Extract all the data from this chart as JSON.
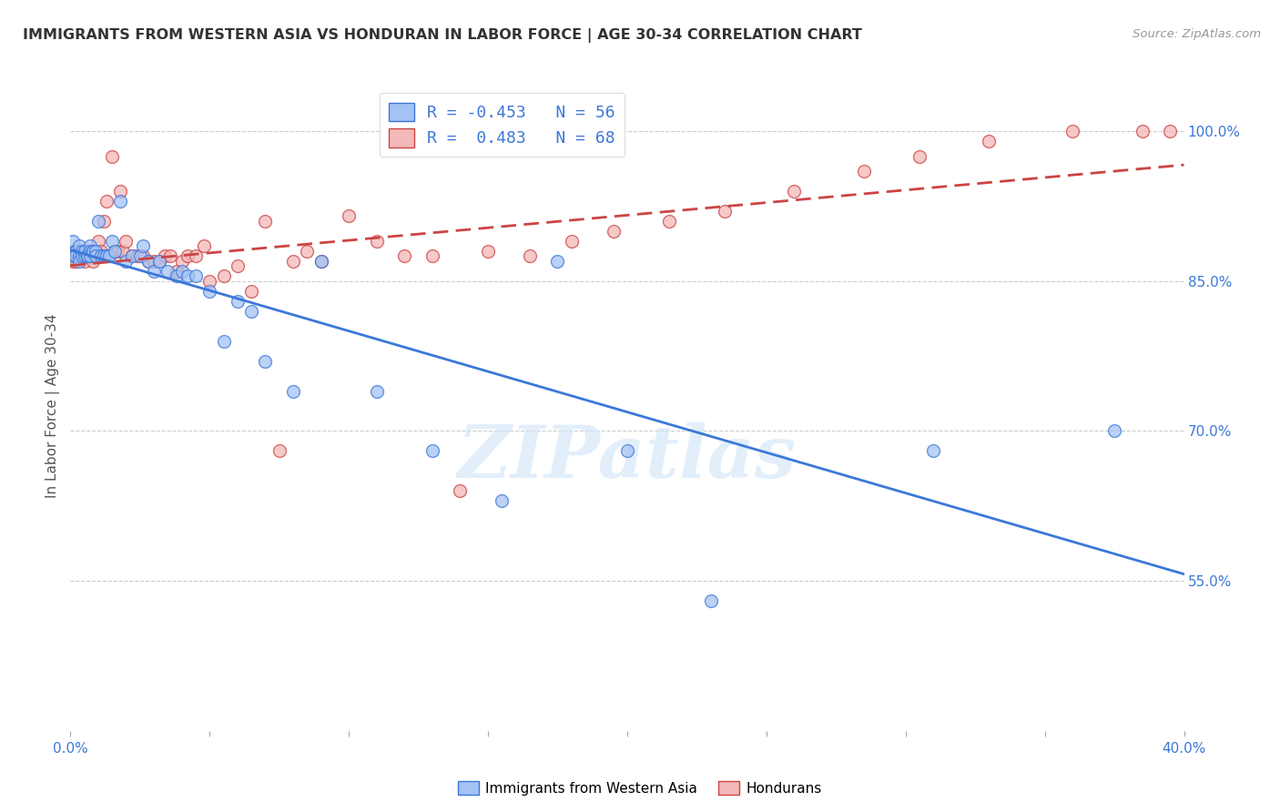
{
  "title": "IMMIGRANTS FROM WESTERN ASIA VS HONDURAN IN LABOR FORCE | AGE 30-34 CORRELATION CHART",
  "source": "Source: ZipAtlas.com",
  "ylabel": "In Labor Force | Age 30-34",
  "xlim": [
    0.0,
    0.4
  ],
  "ylim": [
    0.4,
    1.05
  ],
  "ytick_positions": [
    0.4,
    0.55,
    0.7,
    0.85,
    1.0
  ],
  "ytick_labels": [
    "",
    "55.0%",
    "70.0%",
    "85.0%",
    "100.0%"
  ],
  "blue_color": "#a4c2f4",
  "pink_color": "#f4b8b8",
  "blue_line_color": "#3c78d8",
  "pink_line_color": "#cc4444",
  "blue_R": -0.453,
  "blue_N": 56,
  "pink_R": 0.483,
  "pink_N": 68,
  "watermark": "ZIPatlas",
  "legend_label_blue": "Immigrants from Western Asia",
  "legend_label_pink": "Hondurans",
  "blue_points_x": [
    0.001,
    0.001,
    0.002,
    0.002,
    0.002,
    0.003,
    0.003,
    0.003,
    0.004,
    0.004,
    0.005,
    0.005,
    0.006,
    0.006,
    0.007,
    0.007,
    0.007,
    0.008,
    0.008,
    0.009,
    0.009,
    0.01,
    0.011,
    0.012,
    0.013,
    0.014,
    0.015,
    0.016,
    0.018,
    0.02,
    0.022,
    0.025,
    0.026,
    0.028,
    0.03,
    0.032,
    0.035,
    0.038,
    0.04,
    0.042,
    0.045,
    0.05,
    0.055,
    0.06,
    0.065,
    0.07,
    0.08,
    0.09,
    0.11,
    0.13,
    0.155,
    0.175,
    0.2,
    0.23,
    0.31,
    0.375
  ],
  "blue_points_y": [
    0.89,
    0.875,
    0.88,
    0.88,
    0.875,
    0.885,
    0.875,
    0.87,
    0.88,
    0.875,
    0.875,
    0.88,
    0.875,
    0.875,
    0.885,
    0.88,
    0.875,
    0.88,
    0.88,
    0.88,
    0.875,
    0.91,
    0.875,
    0.875,
    0.875,
    0.875,
    0.89,
    0.88,
    0.93,
    0.87,
    0.875,
    0.875,
    0.885,
    0.87,
    0.86,
    0.87,
    0.86,
    0.855,
    0.86,
    0.855,
    0.855,
    0.84,
    0.79,
    0.83,
    0.82,
    0.77,
    0.74,
    0.87,
    0.74,
    0.68,
    0.63,
    0.87,
    0.68,
    0.53,
    0.68,
    0.7
  ],
  "pink_points_x": [
    0.001,
    0.001,
    0.002,
    0.002,
    0.003,
    0.003,
    0.004,
    0.004,
    0.005,
    0.005,
    0.006,
    0.006,
    0.007,
    0.007,
    0.008,
    0.008,
    0.009,
    0.01,
    0.011,
    0.012,
    0.013,
    0.014,
    0.015,
    0.016,
    0.017,
    0.018,
    0.019,
    0.02,
    0.022,
    0.024,
    0.026,
    0.028,
    0.03,
    0.032,
    0.034,
    0.036,
    0.038,
    0.04,
    0.042,
    0.045,
    0.048,
    0.05,
    0.055,
    0.06,
    0.065,
    0.07,
    0.075,
    0.08,
    0.085,
    0.09,
    0.1,
    0.11,
    0.12,
    0.13,
    0.14,
    0.15,
    0.165,
    0.18,
    0.195,
    0.215,
    0.235,
    0.26,
    0.285,
    0.305,
    0.33,
    0.36,
    0.385,
    0.395
  ],
  "pink_points_y": [
    0.87,
    0.88,
    0.87,
    0.875,
    0.875,
    0.88,
    0.875,
    0.88,
    0.87,
    0.875,
    0.875,
    0.88,
    0.875,
    0.875,
    0.87,
    0.875,
    0.88,
    0.89,
    0.88,
    0.91,
    0.93,
    0.875,
    0.975,
    0.88,
    0.88,
    0.94,
    0.88,
    0.89,
    0.875,
    0.875,
    0.875,
    0.87,
    0.87,
    0.87,
    0.875,
    0.875,
    0.86,
    0.87,
    0.875,
    0.875,
    0.885,
    0.85,
    0.855,
    0.865,
    0.84,
    0.91,
    0.68,
    0.87,
    0.88,
    0.87,
    0.915,
    0.89,
    0.875,
    0.875,
    0.64,
    0.88,
    0.875,
    0.89,
    0.9,
    0.91,
    0.92,
    0.94,
    0.96,
    0.975,
    0.99,
    1.0,
    1.0,
    1.0
  ]
}
